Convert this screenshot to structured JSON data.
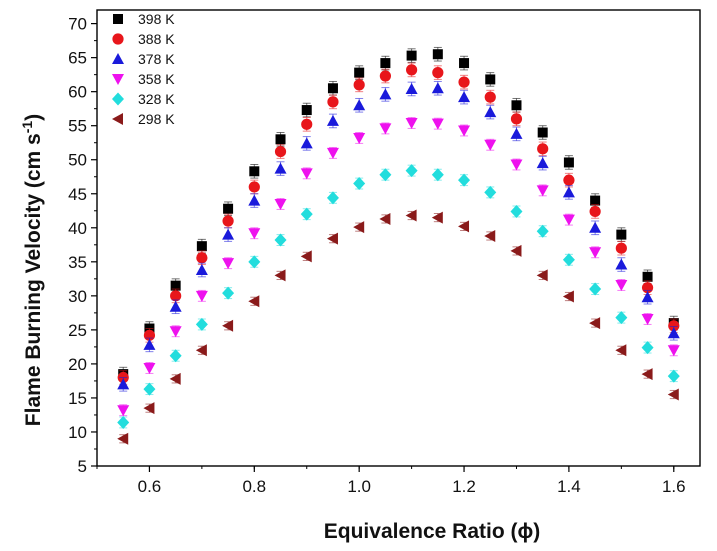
{
  "chart_data": {
    "type": "scatter",
    "title": "",
    "xlabel": "Equivalence Ratio (ϕ)",
    "ylabel_main": "Flame Burning Velocity (cm s",
    "ylabel_sup": "-1",
    "ylabel_close": ")",
    "xlim": [
      0.5,
      1.65
    ],
    "ylim": [
      5,
      72
    ],
    "xticks": [
      0.6,
      0.8,
      1.0,
      1.2,
      1.4,
      1.6
    ],
    "xtick_labels": [
      "0.6",
      "0.8",
      "1.0",
      "1.2",
      "1.4",
      "1.6"
    ],
    "yticks": [
      5,
      10,
      15,
      20,
      25,
      30,
      35,
      40,
      45,
      50,
      55,
      60,
      65,
      70
    ],
    "ytick_labels": [
      "5",
      "10",
      "15",
      "20",
      "25",
      "30",
      "35",
      "40",
      "45",
      "50",
      "55",
      "60",
      "65",
      "70"
    ],
    "grid": false,
    "legend_position": "top-left",
    "x": [
      0.55,
      0.6,
      0.65,
      0.7,
      0.75,
      0.8,
      0.85,
      0.9,
      0.95,
      1.0,
      1.05,
      1.1,
      1.15,
      1.2,
      1.25,
      1.3,
      1.35,
      1.4,
      1.45,
      1.5,
      1.55,
      1.6
    ],
    "series": [
      {
        "name": "398 K",
        "marker": "square",
        "color": "#000000",
        "error": 1.0,
        "values": [
          18.5,
          25.2,
          31.5,
          37.3,
          42.8,
          48.3,
          53.0,
          57.3,
          60.5,
          62.8,
          64.2,
          65.3,
          65.5,
          64.2,
          61.8,
          58.0,
          54.0,
          49.6,
          44.0,
          39.0,
          32.8,
          26.0
        ]
      },
      {
        "name": "388 K",
        "marker": "circle",
        "color": "#e8161b",
        "error": 1.0,
        "values": [
          18.0,
          24.2,
          30.0,
          35.6,
          41.0,
          46.0,
          51.2,
          55.2,
          58.5,
          61.0,
          62.3,
          63.2,
          62.8,
          61.4,
          59.2,
          56.0,
          51.6,
          47.0,
          42.4,
          37.0,
          31.2,
          25.6
        ]
      },
      {
        "name": "378 K",
        "marker": "triangle-up",
        "color": "#1a1adb",
        "error": 1.0,
        "values": [
          17.0,
          22.8,
          28.4,
          33.8,
          39.0,
          44.0,
          48.7,
          52.4,
          55.7,
          58.0,
          59.6,
          60.4,
          60.5,
          59.2,
          57.0,
          53.8,
          49.5,
          45.2,
          40.0,
          34.6,
          29.8,
          24.5
        ]
      },
      {
        "name": "358 K",
        "marker": "triangle-down",
        "color": "#ee11ee",
        "error": 0.8,
        "values": [
          13.2,
          19.4,
          24.8,
          30.0,
          34.8,
          39.2,
          43.5,
          48.0,
          51.0,
          53.2,
          54.6,
          55.4,
          55.3,
          54.3,
          52.2,
          49.3,
          45.5,
          41.2,
          36.4,
          31.6,
          26.6,
          22.0
        ]
      },
      {
        "name": "328 K",
        "marker": "diamond",
        "color": "#22dddd",
        "error": 0.8,
        "values": [
          11.4,
          16.3,
          21.2,
          25.8,
          30.4,
          35.0,
          38.2,
          42.0,
          44.4,
          46.5,
          47.8,
          48.4,
          47.8,
          47.0,
          45.2,
          42.4,
          39.5,
          35.3,
          31.0,
          26.8,
          22.4,
          18.2
        ]
      },
      {
        "name": "298 K",
        "marker": "triangle-left",
        "color": "#8a1a1a",
        "error": 0.6,
        "values": [
          9.0,
          13.5,
          17.8,
          22.0,
          25.6,
          29.2,
          33.0,
          35.8,
          38.4,
          40.1,
          41.3,
          41.8,
          41.5,
          40.2,
          38.8,
          36.6,
          33.0,
          29.9,
          26.0,
          22.0,
          18.5,
          15.5
        ]
      }
    ]
  }
}
